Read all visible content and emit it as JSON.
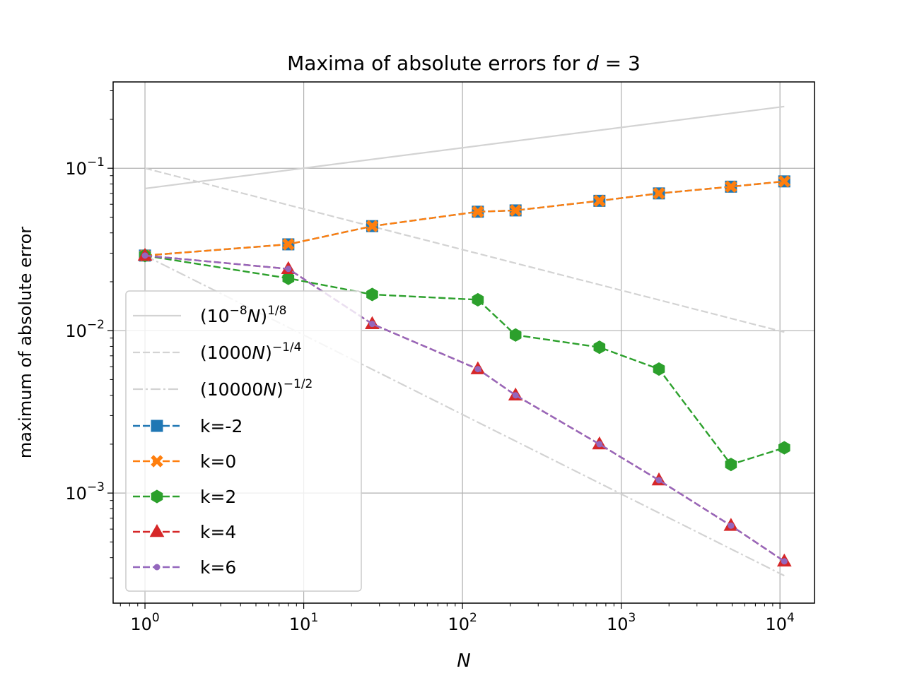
{
  "chart_data": {
    "type": "line",
    "title_prefix": "Maxima of absolute errors for ",
    "title_var": "d",
    "title_suffix": " = 3",
    "xlabel": "N",
    "ylabel": "maximum of absolute error",
    "xscale": "log",
    "yscale": "log",
    "xlim": [
      0.63,
      16500
    ],
    "ylim": [
      0.00021,
      0.34
    ],
    "grid": true,
    "legend_position": "lower-left",
    "x_major_ticks": [
      {
        "value": 1,
        "base": "10",
        "exp": "0"
      },
      {
        "value": 10,
        "base": "10",
        "exp": "1"
      },
      {
        "value": 100,
        "base": "10",
        "exp": "2"
      },
      {
        "value": 1000,
        "base": "10",
        "exp": "3"
      },
      {
        "value": 10000,
        "base": "10",
        "exp": "4"
      }
    ],
    "y_major_ticks": [
      {
        "value": 0.001,
        "base": "10",
        "exp": "−3"
      },
      {
        "value": 0.01,
        "base": "10",
        "exp": "−2"
      },
      {
        "value": 0.1,
        "base": "10",
        "exp": "−1"
      }
    ],
    "reference_lines": [
      {
        "legend": {
          "pre": "(10",
          "sup1": "−8",
          "var": "N",
          "post": ")",
          "sup2": "1/8"
        },
        "x": [
          1,
          10648
        ],
        "y": [
          0.075,
          0.24
        ],
        "style": "solid",
        "color": "#d3d3d3"
      },
      {
        "legend": {
          "pre": "(1000",
          "sup1": "",
          "var": "N",
          "post": ")",
          "sup2": "−1/4"
        },
        "x": [
          1,
          10648
        ],
        "y": [
          0.1,
          0.0098
        ],
        "style": "dashed",
        "color": "#d3d3d3"
      },
      {
        "legend": {
          "pre": "(10000",
          "sup1": "",
          "var": "N",
          "post": ")",
          "sup2": "−1/2"
        },
        "x": [
          1,
          10648
        ],
        "y": [
          0.029,
          0.00031
        ],
        "style": "dashdot",
        "color": "#d3d3d3"
      }
    ],
    "series": [
      {
        "name": "k=-2",
        "color": "#1f77b4",
        "marker": "square",
        "line": "dashed",
        "x": [
          1,
          8,
          27,
          125,
          216,
          729,
          1728,
          4913,
          10648
        ],
        "y": [
          0.029,
          0.034,
          0.044,
          0.054,
          0.055,
          0.063,
          0.07,
          0.077,
          0.083
        ]
      },
      {
        "name": "k=0",
        "color": "#ff7f0e",
        "marker": "x-filled",
        "line": "dashed",
        "x": [
          1,
          8,
          27,
          125,
          216,
          729,
          1728,
          4913,
          10648
        ],
        "y": [
          0.029,
          0.034,
          0.044,
          0.054,
          0.055,
          0.063,
          0.07,
          0.077,
          0.083
        ]
      },
      {
        "name": "k=2",
        "color": "#2ca02c",
        "marker": "hexagon",
        "line": "dashed",
        "x": [
          1,
          8,
          27,
          125,
          216,
          729,
          1728,
          4913,
          10648
        ],
        "y": [
          0.029,
          0.021,
          0.0167,
          0.0155,
          0.0094,
          0.0079,
          0.0058,
          0.0015,
          0.0019
        ]
      },
      {
        "name": "k=4",
        "color": "#d62728",
        "marker": "triangle",
        "line": "dashed",
        "x": [
          1,
          8,
          27,
          125,
          216,
          729,
          1728,
          4913,
          10648
        ],
        "y": [
          0.029,
          0.024,
          0.011,
          0.0058,
          0.004,
          0.002,
          0.0012,
          0.00063,
          0.00038
        ]
      },
      {
        "name": "k=6",
        "color": "#9467bd",
        "marker": "dot",
        "line": "dashed",
        "x": [
          1,
          8,
          27,
          125,
          216,
          729,
          1728,
          4913,
          10648
        ],
        "y": [
          0.029,
          0.024,
          0.011,
          0.0058,
          0.004,
          0.002,
          0.0012,
          0.00063,
          0.00038
        ]
      }
    ]
  }
}
